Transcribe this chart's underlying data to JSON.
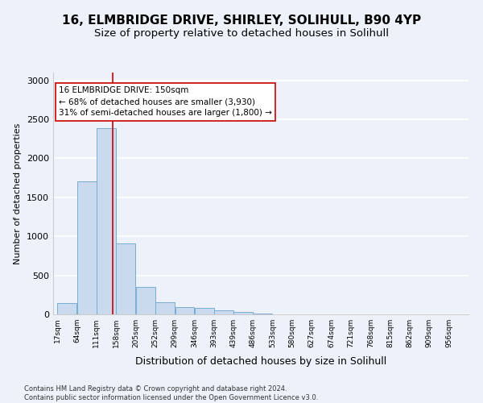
{
  "title1": "16, ELMBRIDGE DRIVE, SHIRLEY, SOLIHULL, B90 4YP",
  "title2": "Size of property relative to detached houses in Solihull",
  "xlabel": "Distribution of detached houses by size in Solihull",
  "ylabel": "Number of detached properties",
  "footnote": "Contains HM Land Registry data © Crown copyright and database right 2024.\nContains public sector information licensed under the Open Government Licence v3.0.",
  "annotation_line1": "16 ELMBRIDGE DRIVE: 150sqm",
  "annotation_line2": "← 68% of detached houses are smaller (3,930)",
  "annotation_line3": "31% of semi-detached houses are larger (1,800) →",
  "bar_color": "#c9d9ee",
  "bar_edge_color": "#7aadd4",
  "bar_left_edges": [
    17,
    64,
    111,
    158,
    205,
    252,
    299,
    346,
    393,
    439,
    486,
    533,
    580,
    627,
    674,
    721,
    768,
    815,
    862,
    909
  ],
  "bar_widths": [
    47,
    47,
    47,
    47,
    47,
    47,
    47,
    47,
    47,
    47,
    47,
    47,
    47,
    47,
    47,
    47,
    47,
    47,
    47,
    47
  ],
  "bar_heights": [
    140,
    1700,
    2390,
    910,
    350,
    160,
    90,
    85,
    50,
    30,
    15,
    5,
    0,
    0,
    0,
    0,
    0,
    0,
    0,
    0
  ],
  "tick_labels": [
    "17sqm",
    "64sqm",
    "111sqm",
    "158sqm",
    "205sqm",
    "252sqm",
    "299sqm",
    "346sqm",
    "393sqm",
    "439sqm",
    "486sqm",
    "533sqm",
    "580sqm",
    "627sqm",
    "674sqm",
    "721sqm",
    "768sqm",
    "815sqm",
    "862sqm",
    "909sqm",
    "956sqm"
  ],
  "tick_positions": [
    17,
    64,
    111,
    158,
    205,
    252,
    299,
    346,
    393,
    439,
    486,
    533,
    580,
    627,
    674,
    721,
    768,
    815,
    862,
    909,
    956
  ],
  "yticks": [
    0,
    500,
    1000,
    1500,
    2000,
    2500,
    3000
  ],
  "ylim": [
    0,
    3100
  ],
  "xlim_min": 7,
  "xlim_max": 1003,
  "property_x": 150,
  "red_line_color": "#cc0000",
  "annotation_box_color": "#ffffff",
  "annotation_box_edge": "#cc0000",
  "background_color": "#edf2fa",
  "grid_color": "#ffffff",
  "title1_fontsize": 11,
  "title2_fontsize": 9.5,
  "ylabel_fontsize": 8,
  "xlabel_fontsize": 9,
  "tick_fontsize": 6.5,
  "ytick_fontsize": 8,
  "annotation_fontsize": 7.5,
  "footnote_fontsize": 6
}
